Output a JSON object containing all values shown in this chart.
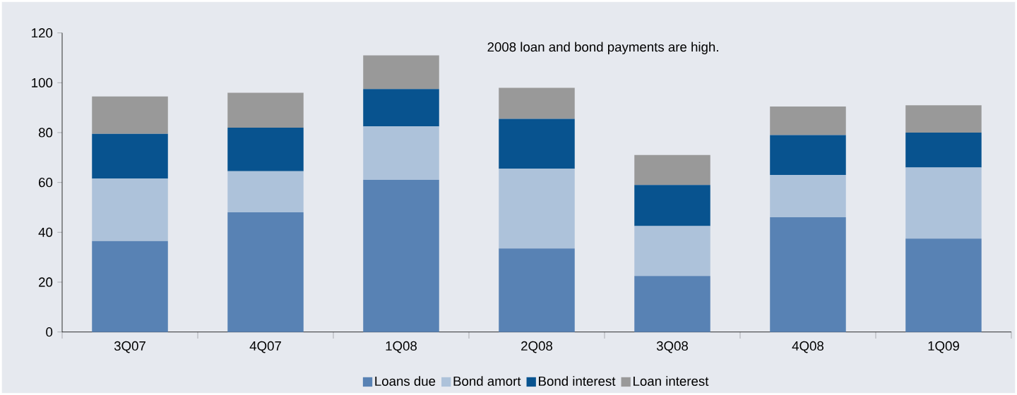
{
  "chart_data": {
    "type": "bar",
    "stacked": true,
    "categories": [
      "3Q07",
      "4Q07",
      "1Q08",
      "2Q08",
      "3Q08",
      "4Q08",
      "1Q09"
    ],
    "series": [
      {
        "name": "Loans due",
        "color": "#5882b4",
        "values": [
          36.5,
          48,
          61,
          33.5,
          22.5,
          46,
          37.5
        ]
      },
      {
        "name": "Bond amort",
        "color": "#adc2da",
        "values": [
          25,
          16.5,
          21.5,
          32,
          20,
          17,
          28.5
        ]
      },
      {
        "name": "Bond interest",
        "color": "#08538f",
        "values": [
          18,
          17.5,
          15,
          20,
          16.5,
          16,
          14
        ]
      },
      {
        "name": "Loan interest",
        "color": "#999999",
        "values": [
          15,
          14,
          13.5,
          12.5,
          12,
          11.5,
          11
        ]
      }
    ],
    "ylim": [
      0,
      120
    ],
    "yticks": [
      0,
      20,
      40,
      60,
      80,
      100,
      120
    ],
    "grid": false,
    "legend": "bottom",
    "annotations": [
      "2008 loan and bond payments are high."
    ]
  }
}
